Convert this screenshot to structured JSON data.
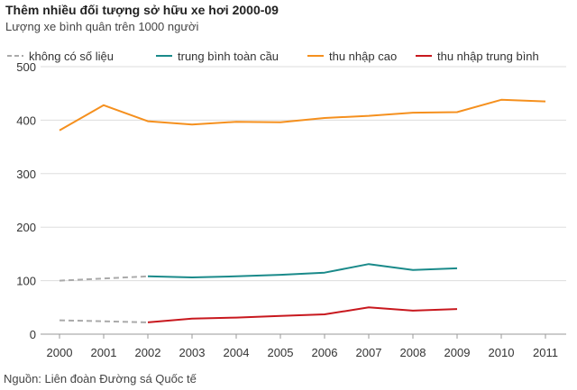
{
  "header": {
    "title": "Thêm nhiều đối tượng sở hữu xe hơi 2000-09",
    "subtitle": "Lượng xe bình quân trên 1000 người"
  },
  "footer": {
    "source": "Nguồn: Liên đoàn Đường sá Quốc tế"
  },
  "chart_data": {
    "type": "line",
    "title": "Thêm nhiều đối tượng sở hữu xe hơi 2000-09",
    "subtitle": "Lượng xe bình quân trên 1000 người",
    "xlabel": "",
    "ylabel": "",
    "x": [
      "2000",
      "2001",
      "2002",
      "2003",
      "2004",
      "2005",
      "2006",
      "2007",
      "2008",
      "2009",
      "2010",
      "2011"
    ],
    "ylim": [
      0,
      500
    ],
    "yticks": [
      0,
      100,
      200,
      300,
      400,
      500
    ],
    "grid": "horizontal",
    "legend_position": "top",
    "series": [
      {
        "name": "không có số liệu",
        "color": "#aaaaaa",
        "dashed": true,
        "values": [
          100,
          104,
          108,
          null,
          null,
          null,
          null,
          null,
          null,
          null,
          null,
          null
        ]
      },
      {
        "name": "không có số liệu",
        "color": "#aaaaaa",
        "dashed": true,
        "legend": false,
        "values": [
          26,
          24,
          22,
          null,
          null,
          null,
          null,
          null,
          null,
          null,
          null,
          null
        ]
      },
      {
        "name": "trung bình toàn cầu",
        "color": "#1a8a8a",
        "values": [
          null,
          null,
          108,
          106,
          108,
          111,
          115,
          131,
          120,
          123,
          null,
          null
        ]
      },
      {
        "name": "thu nhập cao",
        "color": "#f5901e",
        "values": [
          381,
          428,
          398,
          392,
          397,
          396,
          404,
          408,
          414,
          415,
          438,
          435
        ]
      },
      {
        "name": "thu nhập trung bình",
        "color": "#c8181e",
        "values": [
          null,
          null,
          22,
          29,
          31,
          34,
          37,
          50,
          44,
          47,
          null,
          null
        ]
      }
    ]
  }
}
